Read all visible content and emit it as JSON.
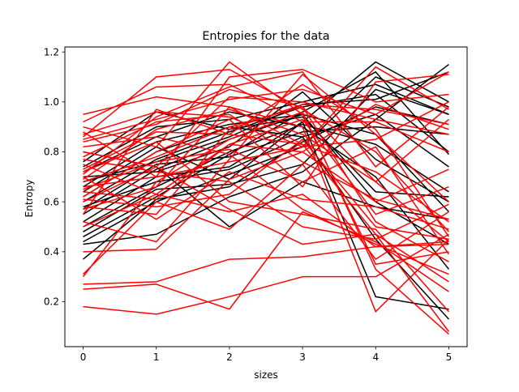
{
  "chart_data": {
    "type": "line",
    "title": "Entropies for the data",
    "xlabel": "sizes",
    "ylabel": "Entropy",
    "x": [
      0,
      1,
      2,
      3,
      4,
      5
    ],
    "xlim": [
      -0.25,
      5.25
    ],
    "ylim": [
      0.02,
      1.22
    ],
    "xticks": [
      "0",
      "1",
      "2",
      "3",
      "4",
      "5"
    ],
    "yticks": [
      {
        "value": 0.2,
        "label": "0.2"
      },
      {
        "value": 0.4,
        "label": "0.4"
      },
      {
        "value": 0.6,
        "label": "0.6"
      },
      {
        "value": 0.8,
        "label": "0.8"
      },
      {
        "value": 1.0,
        "label": "1.0"
      },
      {
        "value": 1.2,
        "label": "1.2"
      }
    ],
    "grid": false,
    "legend": "none",
    "colors": {
      "black_series": "#000000",
      "red_series": "#ff0000"
    },
    "series": [
      {
        "color": "#000000",
        "values": [
          0.43,
          0.47,
          0.62,
          0.72,
          0.93,
          1.15
        ]
      },
      {
        "color": "#000000",
        "values": [
          0.44,
          0.6,
          0.71,
          0.82,
          1.1,
          0.98
        ]
      },
      {
        "color": "#000000",
        "values": [
          0.48,
          0.65,
          0.67,
          0.75,
          1.05,
          0.95
        ]
      },
      {
        "color": "#000000",
        "values": [
          0.5,
          0.66,
          0.8,
          0.91,
          0.83,
          0.64
        ]
      },
      {
        "color": "#000000",
        "values": [
          0.52,
          0.7,
          0.74,
          0.92,
          1.16,
          1.0
        ]
      },
      {
        "color": "#000000",
        "values": [
          0.55,
          0.73,
          0.85,
          0.95,
          0.6,
          0.43
        ]
      },
      {
        "color": "#000000",
        "values": [
          0.57,
          0.75,
          0.78,
          0.88,
          0.9,
          0.87
        ]
      },
      {
        "color": "#000000",
        "values": [
          0.6,
          0.77,
          0.88,
          0.98,
          1.03,
          0.8
        ]
      },
      {
        "color": "#000000",
        "values": [
          0.62,
          0.8,
          0.9,
          0.86,
          0.95,
          0.74
        ]
      },
      {
        "color": "#000000",
        "values": [
          0.64,
          0.82,
          0.69,
          0.92,
          0.22,
          0.17
        ]
      },
      {
        "color": "#000000",
        "values": [
          0.66,
          0.84,
          0.91,
          0.95,
          0.87,
          0.56
        ]
      },
      {
        "color": "#000000",
        "values": [
          0.68,
          0.76,
          0.86,
          0.99,
          1.01,
          1.12
        ]
      },
      {
        "color": "#000000",
        "values": [
          0.7,
          0.72,
          0.82,
          1.04,
          0.77,
          0.6
        ]
      },
      {
        "color": "#000000",
        "values": [
          0.72,
          0.86,
          0.96,
          0.9,
          0.7,
          0.33
        ]
      },
      {
        "color": "#000000",
        "values": [
          0.74,
          0.9,
          0.93,
          1.0,
          1.07,
          0.95
        ]
      },
      {
        "color": "#000000",
        "values": [
          0.76,
          0.96,
          0.89,
          0.94,
          0.64,
          0.62
        ]
      },
      {
        "color": "#000000",
        "values": [
          0.8,
          0.74,
          0.5,
          0.68,
          0.58,
          0.53
        ]
      },
      {
        "color": "#000000",
        "values": [
          0.37,
          0.61,
          0.66,
          0.84,
          0.98,
          0.91
        ]
      },
      {
        "color": "#000000",
        "values": [
          0.58,
          0.68,
          0.73,
          0.86,
          0.45,
          0.13
        ]
      },
      {
        "color": "#000000",
        "values": [
          0.46,
          0.62,
          0.79,
          0.96,
          1.12,
          0.79
        ]
      },
      {
        "color": "#ff0000",
        "values": [
          0.95,
          1.02,
          0.98,
          0.83,
          0.47,
          0.08
        ]
      },
      {
        "color": "#ff0000",
        "values": [
          0.9,
          0.82,
          1.16,
          0.95,
          0.35,
          0.4
        ]
      },
      {
        "color": "#ff0000",
        "values": [
          0.88,
          0.7,
          1.1,
          1.13,
          1.0,
          1.03
        ]
      },
      {
        "color": "#ff0000",
        "values": [
          0.86,
          1.1,
          1.13,
          0.97,
          0.8,
          0.48
        ]
      },
      {
        "color": "#ff0000",
        "values": [
          0.84,
          0.91,
          1.05,
          0.98,
          0.68,
          0.44
        ]
      },
      {
        "color": "#ff0000",
        "values": [
          0.82,
          0.86,
          0.79,
          0.57,
          0.43,
          0.31
        ]
      },
      {
        "color": "#ff0000",
        "values": [
          0.8,
          0.74,
          1.02,
          1.0,
          0.93,
          0.87
        ]
      },
      {
        "color": "#ff0000",
        "values": [
          0.78,
          0.92,
          0.95,
          0.76,
          0.61,
          0.53
        ]
      },
      {
        "color": "#ff0000",
        "values": [
          0.75,
          0.63,
          0.83,
          0.8,
          0.99,
          0.89
        ]
      },
      {
        "color": "#ff0000",
        "values": [
          0.73,
          0.88,
          0.87,
          1.07,
          0.89,
          0.46
        ]
      },
      {
        "color": "#ff0000",
        "values": [
          0.71,
          0.94,
          1.06,
          1.12,
          0.74,
          0.98
        ]
      },
      {
        "color": "#ff0000",
        "values": [
          0.7,
          0.53,
          0.72,
          0.61,
          0.58,
          0.49
        ]
      },
      {
        "color": "#ff0000",
        "values": [
          0.68,
          0.78,
          0.9,
          0.98,
          0.52,
          0.36
        ]
      },
      {
        "color": "#ff0000",
        "values": [
          0.66,
          0.7,
          0.76,
          0.82,
          0.85,
          1.0
        ]
      },
      {
        "color": "#ff0000",
        "values": [
          0.64,
          0.61,
          0.83,
          0.93,
          0.55,
          0.66
        ]
      },
      {
        "color": "#ff0000",
        "values": [
          0.62,
          0.8,
          0.93,
          0.66,
          1.08,
          1.11
        ]
      },
      {
        "color": "#ff0000",
        "values": [
          0.6,
          0.74,
          0.57,
          0.43,
          0.47,
          0.28
        ]
      },
      {
        "color": "#ff0000",
        "values": [
          0.58,
          0.55,
          0.89,
          0.99,
          0.97,
          0.91
        ]
      },
      {
        "color": "#ff0000",
        "values": [
          0.57,
          0.66,
          0.98,
          0.9,
          0.16,
          0.45
        ]
      },
      {
        "color": "#ff0000",
        "values": [
          0.55,
          0.97,
          0.87,
          0.83,
          0.72,
          0.52
        ]
      },
      {
        "color": "#ff0000",
        "values": [
          0.52,
          0.44,
          0.77,
          1.11,
          0.87,
          0.6
        ]
      },
      {
        "color": "#ff0000",
        "values": [
          0.5,
          0.63,
          0.56,
          0.63,
          0.42,
          0.44
        ]
      },
      {
        "color": "#ff0000",
        "values": [
          0.4,
          0.41,
          0.69,
          0.8,
          0.6,
          0.73
        ]
      },
      {
        "color": "#ff0000",
        "values": [
          0.31,
          0.6,
          0.49,
          0.75,
          0.37,
          0.56
        ]
      },
      {
        "color": "#ff0000",
        "values": [
          0.3,
          0.68,
          0.85,
          0.96,
          0.33,
          0.07
        ]
      },
      {
        "color": "#ff0000",
        "values": [
          0.27,
          0.28,
          0.37,
          0.38,
          0.42,
          0.43
        ]
      },
      {
        "color": "#ff0000",
        "values": [
          0.25,
          0.27,
          0.17,
          0.56,
          0.44,
          0.24
        ]
      },
      {
        "color": "#ff0000",
        "values": [
          0.18,
          0.15,
          0.22,
          0.3,
          0.3,
          0.47
        ]
      },
      {
        "color": "#ff0000",
        "values": [
          0.92,
          1.06,
          1.07,
          0.92,
          0.92,
          0.8
        ]
      },
      {
        "color": "#ff0000",
        "values": [
          0.87,
          0.96,
          0.94,
          0.82,
          1.14,
          0.97
        ]
      },
      {
        "color": "#ff0000",
        "values": [
          0.77,
          0.72,
          0.68,
          0.5,
          0.45,
          0.59
        ]
      },
      {
        "color": "#ff0000",
        "values": [
          0.72,
          0.84,
          0.6,
          0.55,
          0.49,
          0.16
        ]
      },
      {
        "color": "#ff0000",
        "values": [
          0.69,
          0.89,
          0.97,
          0.87,
          0.68,
          0.93
        ]
      },
      {
        "color": "#ff0000",
        "values": [
          0.65,
          0.76,
          0.81,
          0.68,
          0.82,
          0.39
        ]
      },
      {
        "color": "#ff0000",
        "values": [
          0.61,
          0.58,
          0.63,
          0.85,
          0.5,
          0.45
        ]
      },
      {
        "color": "#ff0000",
        "values": [
          0.85,
          0.93,
          1.01,
          1.05,
          0.95,
          1.12
        ]
      }
    ]
  }
}
